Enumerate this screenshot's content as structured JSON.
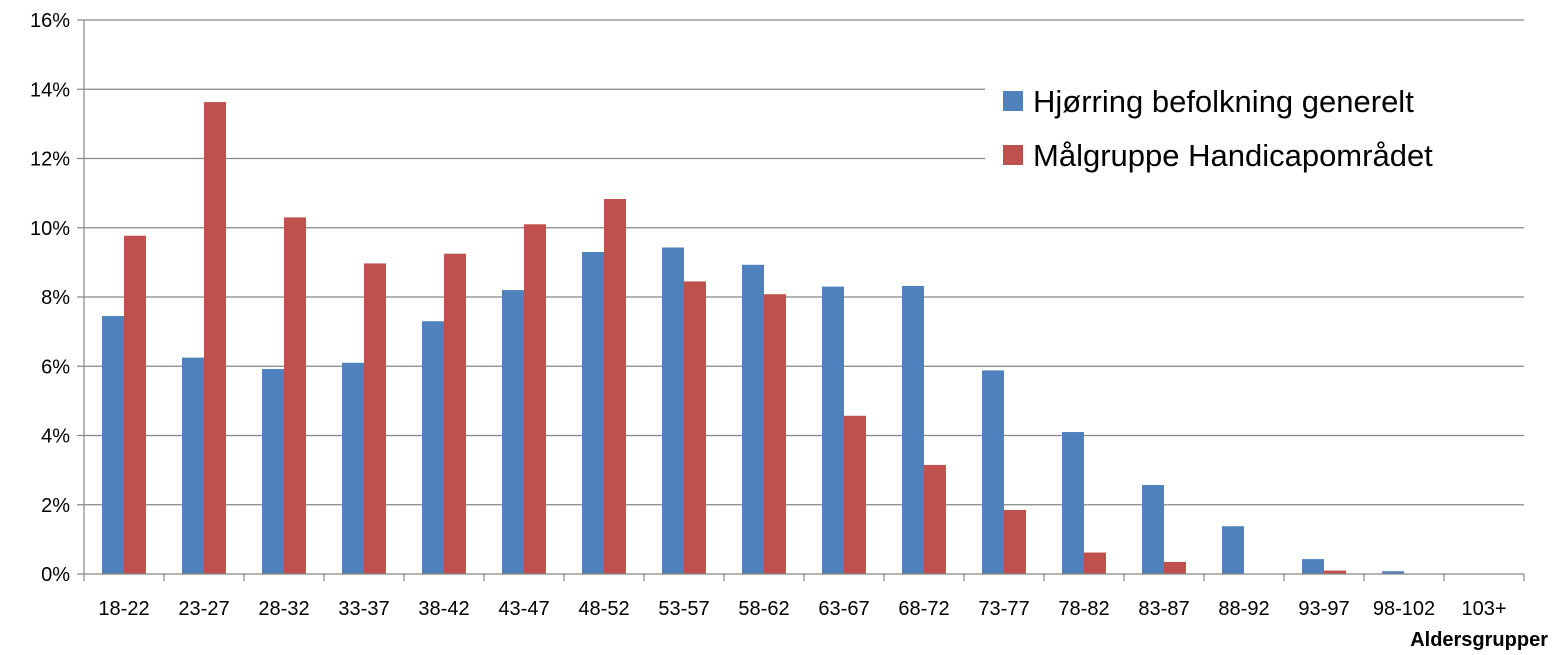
{
  "chart_data": {
    "type": "bar",
    "categories": [
      "18-22",
      "23-27",
      "28-32",
      "33-37",
      "38-42",
      "43-47",
      "48-52",
      "53-57",
      "58-62",
      "63-67",
      "68-72",
      "73-77",
      "78-82",
      "83-87",
      "88-92",
      "93-97",
      "98-102",
      "103+"
    ],
    "series": [
      {
        "name": "Hjørring befolkning generelt",
        "color": "#4F81BD",
        "values": [
          7.45,
          6.25,
          5.92,
          6.1,
          7.3,
          8.2,
          9.3,
          9.43,
          8.93,
          8.3,
          8.32,
          5.88,
          4.1,
          2.57,
          1.38,
          0.43,
          0.08,
          0.0
        ]
      },
      {
        "name": "Målgruppe Handicapområdet",
        "color": "#C0504D",
        "values": [
          9.77,
          13.63,
          10.3,
          8.97,
          9.25,
          10.1,
          10.83,
          8.45,
          8.08,
          4.57,
          3.15,
          1.85,
          0.62,
          0.35,
          0.0,
          0.1,
          0.0,
          0.0
        ]
      }
    ],
    "ylim": [
      0,
      16
    ],
    "yticks": [
      "0%",
      "2%",
      "4%",
      "6%",
      "8%",
      "10%",
      "12%",
      "14%",
      "16%"
    ],
    "ytick_values": [
      0,
      2,
      4,
      6,
      8,
      10,
      12,
      14,
      16
    ],
    "xlabel": "Aldersgrupper",
    "ylabel": "",
    "grid": true,
    "legend_position": "top-right"
  }
}
